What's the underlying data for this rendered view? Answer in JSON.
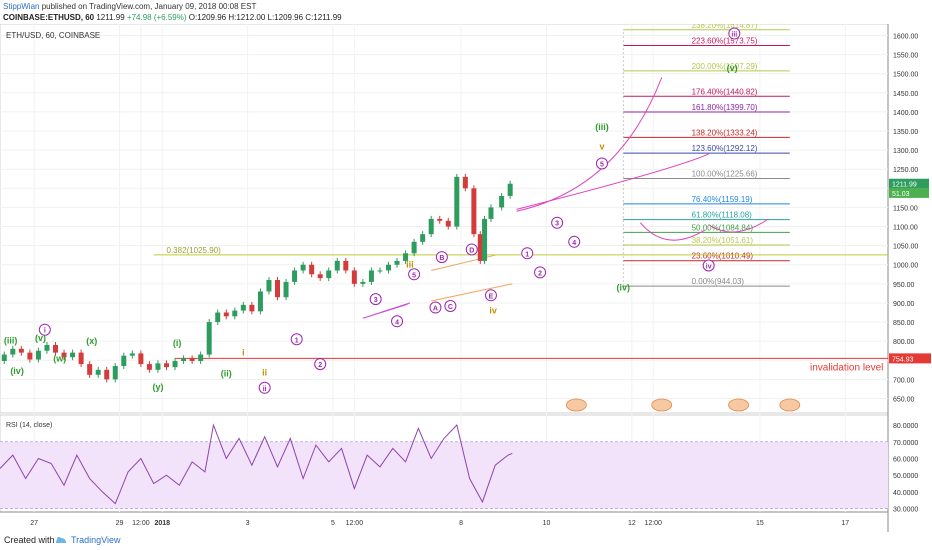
{
  "header": {
    "author": "StippWian",
    "published": "published on TradingView.com, January 09, 2018 00:08 EST",
    "symbol": "COINBASE:ETHUSD, 60",
    "last": "1211.99",
    "change": "+74.98 (+6.59%)",
    "ohlc": "O:1209.96 H:1212.00 L:1209.96 C:1211.99"
  },
  "footer": {
    "created_with": "Created with",
    "brand": "TradingView"
  },
  "chart_data": {
    "type": "line",
    "title": "ETH/USD, 60, COINBASE",
    "ylim": [
      612,
      1630
    ],
    "yticks": [
      650,
      700,
      750,
      800,
      850,
      900,
      950,
      1000,
      1050,
      1100,
      1150,
      1200,
      1250,
      1300,
      1350,
      1400,
      1450,
      1500,
      1550,
      1600
    ],
    "xticks": [
      {
        "label": "27",
        "x": 0.8
      },
      {
        "label": "29",
        "x": 2.8
      },
      {
        "label": "12:00",
        "x": 3.3
      },
      {
        "label": "2018",
        "x": 3.8
      },
      {
        "label": "3",
        "x": 5.8
      },
      {
        "label": "5",
        "x": 7.8
      },
      {
        "label": "12:00",
        "x": 8.3
      },
      {
        "label": "8",
        "x": 10.8
      },
      {
        "label": "10",
        "x": 12.8
      },
      {
        "label": "12",
        "x": 14.8
      },
      {
        "label": "12:00",
        "x": 15.3
      },
      {
        "label": "15",
        "x": 17.8
      },
      {
        "label": "17",
        "x": 19.8
      }
    ],
    "xlim": [
      0,
      20.8
    ],
    "price_series": [
      [
        0.0,
        748
      ],
      [
        0.2,
        765
      ],
      [
        0.4,
        780
      ],
      [
        0.6,
        770
      ],
      [
        0.8,
        752
      ],
      [
        1.0,
        775
      ],
      [
        1.2,
        790
      ],
      [
        1.4,
        770
      ],
      [
        1.6,
        758
      ],
      [
        1.8,
        770
      ],
      [
        2.0,
        740
      ],
      [
        2.2,
        712
      ],
      [
        2.4,
        725
      ],
      [
        2.6,
        700
      ],
      [
        2.8,
        735
      ],
      [
        3.0,
        762
      ],
      [
        3.2,
        768
      ],
      [
        3.4,
        740
      ],
      [
        3.6,
        725
      ],
      [
        3.8,
        742
      ],
      [
        4.0,
        732
      ],
      [
        4.2,
        748
      ],
      [
        4.4,
        755
      ],
      [
        4.6,
        748
      ],
      [
        4.8,
        765
      ],
      [
        5.0,
        850
      ],
      [
        5.2,
        875
      ],
      [
        5.4,
        865
      ],
      [
        5.6,
        880
      ],
      [
        5.8,
        895
      ],
      [
        6.0,
        878
      ],
      [
        6.2,
        930
      ],
      [
        6.4,
        960
      ],
      [
        6.6,
        915
      ],
      [
        6.8,
        955
      ],
      [
        7.0,
        985
      ],
      [
        7.2,
        1000
      ],
      [
        7.4,
        975
      ],
      [
        7.6,
        965
      ],
      [
        7.8,
        985
      ],
      [
        8.0,
        1010
      ],
      [
        8.2,
        985
      ],
      [
        8.4,
        950
      ],
      [
        8.6,
        955
      ],
      [
        8.8,
        985
      ],
      [
        9.0,
        985
      ],
      [
        9.2,
        1000
      ],
      [
        9.4,
        1010
      ],
      [
        9.6,
        1030
      ],
      [
        9.8,
        1060
      ],
      [
        10.0,
        1080
      ],
      [
        10.2,
        1120
      ],
      [
        10.4,
        1115
      ],
      [
        10.6,
        1100
      ],
      [
        10.8,
        1230
      ],
      [
        11.0,
        1200
      ],
      [
        11.2,
        1080
      ],
      [
        11.3,
        1010
      ],
      [
        11.4,
        1120
      ],
      [
        11.6,
        1150
      ],
      [
        11.9,
        1180
      ],
      [
        12.0,
        1212
      ]
    ],
    "rsi_series": [
      [
        0.0,
        54
      ],
      [
        0.3,
        62
      ],
      [
        0.6,
        48
      ],
      [
        0.9,
        60
      ],
      [
        1.2,
        57
      ],
      [
        1.5,
        44
      ],
      [
        1.8,
        62
      ],
      [
        2.1,
        48
      ],
      [
        2.4,
        40
      ],
      [
        2.7,
        33
      ],
      [
        3.0,
        52
      ],
      [
        3.3,
        60
      ],
      [
        3.6,
        45
      ],
      [
        3.9,
        50
      ],
      [
        4.2,
        44
      ],
      [
        4.5,
        58
      ],
      [
        4.8,
        52
      ],
      [
        5.0,
        80
      ],
      [
        5.3,
        60
      ],
      [
        5.6,
        72
      ],
      [
        5.9,
        56
      ],
      [
        6.2,
        73
      ],
      [
        6.5,
        55
      ],
      [
        6.8,
        72
      ],
      [
        7.1,
        48
      ],
      [
        7.4,
        68
      ],
      [
        7.7,
        58
      ],
      [
        8.0,
        66
      ],
      [
        8.3,
        42
      ],
      [
        8.6,
        62
      ],
      [
        8.9,
        55
      ],
      [
        9.2,
        66
      ],
      [
        9.5,
        58
      ],
      [
        9.8,
        78
      ],
      [
        10.1,
        60
      ],
      [
        10.4,
        72
      ],
      [
        10.7,
        80
      ],
      [
        11.0,
        48
      ],
      [
        11.3,
        34
      ],
      [
        11.6,
        56
      ],
      [
        11.9,
        62
      ],
      [
        12.0,
        63
      ]
    ],
    "rsi": {
      "label": "RSI (14, close)",
      "ylim": [
        28,
        86
      ],
      "yticks": [
        30,
        40,
        50,
        60,
        70,
        80
      ],
      "tick_labels": [
        "30.0000",
        "40.0000",
        "50.0000",
        "60.0000",
        "70.0000",
        "80.0000"
      ],
      "band": [
        30,
        70
      ]
    },
    "fib_levels": [
      {
        "label": "238.20%(1614.87)",
        "value": 1614.87,
        "color": "#b6c84a"
      },
      {
        "label": "223.60%(1573.75)",
        "value": 1573.75,
        "color": "#c2185b"
      },
      {
        "label": "200.00%(1507.29)",
        "value": 1507.29,
        "color": "#b6c84a"
      },
      {
        "label": "176.40%(1440.82)",
        "value": 1440.82,
        "color": "#c2185b"
      },
      {
        "label": "161.80%(1399.70)",
        "value": 1399.7,
        "color": "#8e24aa"
      },
      {
        "label": "138.20%(1333.24)",
        "value": 1333.24,
        "color": "#c62828"
      },
      {
        "label": "123.60%(1292.12)",
        "value": 1292.12,
        "color": "#3949ab"
      },
      {
        "label": "100.00%(1225.66)",
        "value": 1225.66,
        "color": "#8a8a8a"
      },
      {
        "label": "76.40%(1159.19)",
        "value": 1159.19,
        "color": "#1e88e5"
      },
      {
        "label": "61.80%(1118.08)",
        "value": 1118.08,
        "color": "#26a69a"
      },
      {
        "label": "50.00%(1084.84)",
        "value": 1084.84,
        "color": "#43a047"
      },
      {
        "label": "38.20%(1051.61)",
        "value": 1051.61,
        "color": "#b6c84a"
      },
      {
        "label": "23.60%(1010.49)",
        "value": 1010.49,
        "color": "#c62828"
      },
      {
        "label": "0.00%(944.03)",
        "value": 944.03,
        "color": "#8a8a8a"
      }
    ],
    "fib_side": {
      "label": "0.382(1025.90)",
      "value": 1025.9,
      "color": "#c0ca33"
    },
    "invalidation": {
      "label": "invalidation level",
      "value": 754.93,
      "price_tag": "754.93",
      "color": "#e53935"
    },
    "price_tags": [
      {
        "label": "1211.99",
        "value": 1211.99
      },
      {
        "label": "51.03",
        "value": 1188
      }
    ],
    "wave_labels": [
      {
        "text": "(iii)",
        "x": 0.25,
        "y": 802,
        "color": "#2e9c2e"
      },
      {
        "text": "(iv)",
        "x": 0.4,
        "y": 722,
        "color": "#2e9c2e"
      },
      {
        "text": "i",
        "x": 1.05,
        "y": 830,
        "color": "#9c27b0",
        "circle": true
      },
      {
        "text": "(v)",
        "x": 0.95,
        "y": 808,
        "color": "#2e9c2e"
      },
      {
        "text": "(w)",
        "x": 1.4,
        "y": 755,
        "color": "#2e9c2e"
      },
      {
        "text": "(x)",
        "x": 2.15,
        "y": 800,
        "color": "#2e9c2e"
      },
      {
        "text": "(y)",
        "x": 3.7,
        "y": 680,
        "color": "#2e9c2e"
      },
      {
        "text": "(i)",
        "x": 4.15,
        "y": 795,
        "color": "#2e9c2e"
      },
      {
        "text": "(ii)",
        "x": 5.3,
        "y": 715,
        "color": "#2e9c2e"
      },
      {
        "text": "ii",
        "x": 6.2,
        "y": 678,
        "color": "#9c27b0",
        "circle": true
      },
      {
        "text": "i",
        "x": 5.7,
        "y": 770,
        "color": "#c68f00"
      },
      {
        "text": "ii",
        "x": 6.2,
        "y": 718,
        "color": "#c68f00"
      },
      {
        "text": "1",
        "x": 6.95,
        "y": 805,
        "color": "#9c27b0",
        "circle": true
      },
      {
        "text": "2",
        "x": 7.5,
        "y": 740,
        "color": "#9c27b0",
        "circle": true
      },
      {
        "text": "3",
        "x": 8.8,
        "y": 910,
        "color": "#9c27b0",
        "circle": true
      },
      {
        "text": "4",
        "x": 9.3,
        "y": 852,
        "color": "#9c27b0",
        "circle": true
      },
      {
        "text": "iii",
        "x": 9.6,
        "y": 1000,
        "color": "#c68f00"
      },
      {
        "text": "5",
        "x": 9.7,
        "y": 975,
        "color": "#9c27b0",
        "circle": true
      },
      {
        "text": "B",
        "x": 10.35,
        "y": 1020,
        "color": "#9c27b0",
        "circle": true
      },
      {
        "text": "A",
        "x": 10.2,
        "y": 888,
        "color": "#9c27b0",
        "circle": true
      },
      {
        "text": "C",
        "x": 10.55,
        "y": 892,
        "color": "#9c27b0",
        "circle": true
      },
      {
        "text": "D",
        "x": 11.05,
        "y": 1040,
        "color": "#9c27b0",
        "circle": true
      },
      {
        "text": "E",
        "x": 11.5,
        "y": 920,
        "color": "#9c27b0",
        "circle": true
      },
      {
        "text": "iv",
        "x": 11.55,
        "y": 880,
        "color": "#c68f00"
      },
      {
        "text": "1",
        "x": 12.35,
        "y": 1030,
        "color": "#9c27b0",
        "circle": true
      },
      {
        "text": "2",
        "x": 12.65,
        "y": 980,
        "color": "#9c27b0",
        "circle": true
      },
      {
        "text": "3",
        "x": 13.05,
        "y": 1110,
        "color": "#9c27b0",
        "circle": true
      },
      {
        "text": "4",
        "x": 13.45,
        "y": 1060,
        "color": "#9c27b0",
        "circle": true
      },
      {
        "text": "5",
        "x": 14.1,
        "y": 1265,
        "color": "#9c27b0",
        "circle": true
      },
      {
        "text": "v",
        "x": 14.1,
        "y": 1310,
        "color": "#c68f00"
      },
      {
        "text": "(iii)",
        "x": 14.1,
        "y": 1360,
        "color": "#2e9c2e"
      },
      {
        "text": "(iv)",
        "x": 14.6,
        "y": 940,
        "color": "#2e9c2e"
      },
      {
        "text": "iv",
        "x": 16.6,
        "y": 998,
        "color": "#9c27b0",
        "circle": true
      },
      {
        "text": "(v)",
        "x": 17.15,
        "y": 1515,
        "color": "#2e9c2e"
      },
      {
        "text": "iii",
        "x": 17.2,
        "y": 1605,
        "color": "#9c27b0",
        "circle": true
      }
    ]
  }
}
